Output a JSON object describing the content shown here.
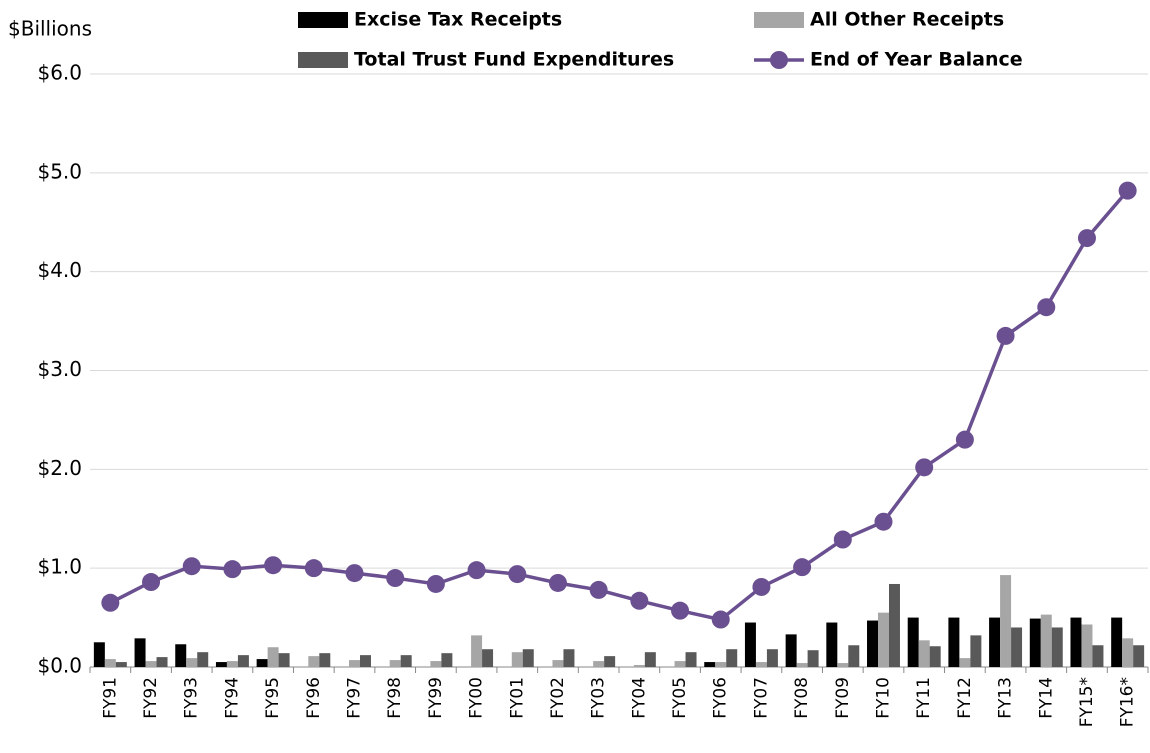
{
  "chart_data": {
    "type": "bar",
    "y_label": "$Billions",
    "categories": [
      "FY91",
      "FY92",
      "FY93",
      "FY94",
      "FY95",
      "FY96",
      "FY97",
      "FY98",
      "FY99",
      "FY00",
      "FY01",
      "FY02",
      "FY03",
      "FY04",
      "FY05",
      "FY06",
      "FY07",
      "FY08",
      "FY09",
      "FY10",
      "FY11",
      "FY12",
      "FY13",
      "FY14",
      "FY15*",
      "FY16*"
    ],
    "series": [
      {
        "name": "Excise Tax Receipts",
        "color": "#000000",
        "type": "bar",
        "values": [
          0.25,
          0.29,
          0.23,
          0.05,
          0.08,
          0,
          0,
          0,
          0,
          0,
          0,
          0,
          0,
          0,
          0,
          0.05,
          0.45,
          0.33,
          0.45,
          0.47,
          0.5,
          0.5,
          0.5,
          0.49,
          0.5,
          0.5
        ]
      },
      {
        "name": "All Other Receipts",
        "color": "#a6a6a6",
        "type": "bar",
        "values": [
          0.08,
          0.06,
          0.09,
          0.06,
          0.2,
          0.11,
          0.07,
          0.07,
          0.06,
          0.32,
          0.15,
          0.07,
          0.06,
          0.02,
          0.06,
          0.05,
          0.05,
          0.04,
          0.04,
          0.55,
          0.27,
          0.09,
          0.93,
          0.53,
          0.43,
          0.29
        ]
      },
      {
        "name": "Total Trust Fund Expenditures",
        "color": "#595959",
        "type": "bar",
        "values": [
          0.05,
          0.1,
          0.15,
          0.12,
          0.14,
          0.14,
          0.12,
          0.12,
          0.14,
          0.18,
          0.18,
          0.18,
          0.11,
          0.15,
          0.15,
          0.18,
          0.18,
          0.17,
          0.22,
          0.84,
          0.21,
          0.32,
          0.4,
          0.4,
          0.22,
          0.22
        ]
      },
      {
        "name": "End of Year Balance",
        "color": "#6a5090",
        "type": "line",
        "values": [
          0.65,
          0.86,
          1.02,
          0.99,
          1.03,
          1.0,
          0.95,
          0.9,
          0.84,
          0.98,
          0.94,
          0.85,
          0.78,
          0.67,
          0.57,
          0.48,
          0.81,
          1.01,
          1.29,
          1.47,
          2.02,
          2.3,
          3.35,
          3.64,
          4.34,
          4.82
        ]
      }
    ],
    "ylim": [
      0,
      6
    ],
    "yticks": [
      {
        "value": 0,
        "label": "$0.0"
      },
      {
        "value": 1,
        "label": "$1.0"
      },
      {
        "value": 2,
        "label": "$2.0"
      },
      {
        "value": 3,
        "label": "$3.0"
      },
      {
        "value": 4,
        "label": "$4.0"
      },
      {
        "value": 5,
        "label": "$5.0"
      },
      {
        "value": 6,
        "label": "$6.0"
      }
    ],
    "grid": true
  }
}
